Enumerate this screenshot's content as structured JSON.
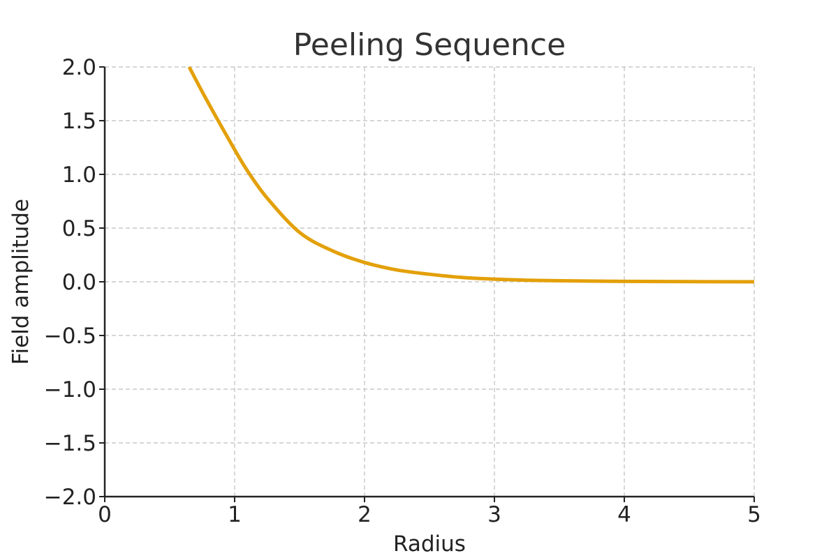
{
  "chart_data": {
    "type": "line",
    "title": "Peeling Sequence",
    "xlabel": "Radius",
    "ylabel": "Field amplitude",
    "xlim": [
      0,
      5
    ],
    "ylim": [
      -2.0,
      2.0
    ],
    "grid": true,
    "x_ticks": [
      0,
      1,
      2,
      3,
      4,
      5
    ],
    "x_tick_labels": [
      "0",
      "1",
      "2",
      "3",
      "4",
      "5"
    ],
    "y_ticks": [
      -2.0,
      -1.5,
      -1.0,
      -0.5,
      0.0,
      0.5,
      1.0,
      1.5,
      2.0
    ],
    "y_tick_labels": [
      "−2.0",
      "−1.5",
      "−1.0",
      "−0.5",
      "0.0",
      "0.5",
      "1.0",
      "1.5",
      "2.0"
    ],
    "series": [
      {
        "color": "#e3a00a",
        "x": [
          0.65,
          0.75,
          0.85,
          1.0,
          1.1,
          1.25,
          1.5,
          1.75,
          2.0,
          2.25,
          2.5,
          2.75,
          3.0,
          3.25,
          3.5,
          4.0,
          4.5,
          5.0
        ],
        "y": [
          2.0,
          1.77,
          1.55,
          1.23,
          1.03,
          0.78,
          0.46,
          0.29,
          0.18,
          0.11,
          0.07,
          0.04,
          0.025,
          0.015,
          0.01,
          0.004,
          0.001,
          0.0
        ]
      }
    ]
  }
}
